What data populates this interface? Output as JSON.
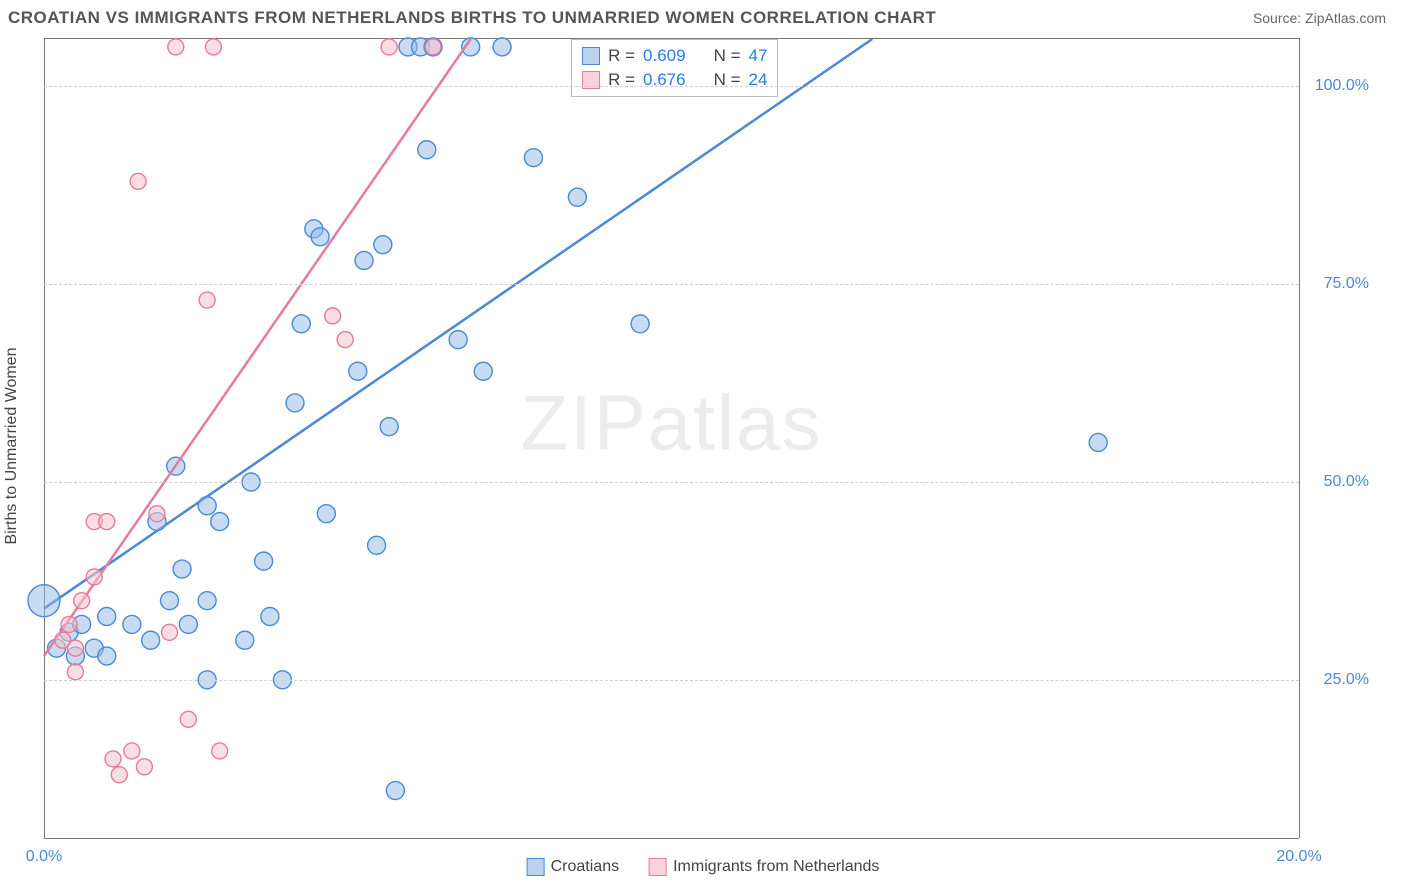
{
  "header": {
    "title": "CROATIAN VS IMMIGRANTS FROM NETHERLANDS BIRTHS TO UNMARRIED WOMEN CORRELATION CHART",
    "source": "Source: ZipAtlas.com"
  },
  "watermark": {
    "left": "ZIP",
    "right": "atlas"
  },
  "chart": {
    "type": "scatter",
    "y_axis_title": "Births to Unmarried Women",
    "x_domain": [
      0,
      20
    ],
    "y_domain": [
      5,
      106
    ],
    "x_ticks": [
      {
        "value": 0,
        "label": "0.0%",
        "color": "#4a8ad4"
      },
      {
        "value": 20,
        "label": "20.0%",
        "color": "#4a8ad4"
      }
    ],
    "y_ticks": [
      {
        "value": 25,
        "label": "25.0%",
        "color": "#4a8ad4"
      },
      {
        "value": 50,
        "label": "50.0%",
        "color": "#4a8ad4"
      },
      {
        "value": 75,
        "label": "75.0%",
        "color": "#4a8ad4"
      },
      {
        "value": 100,
        "label": "100.0%",
        "color": "#4a8ad4"
      }
    ],
    "grid_color": "#d0d0d0",
    "series": [
      {
        "id": "croatians",
        "label": "Croatians",
        "color_fill": "#90b8e8",
        "color_stroke": "#4a8ad4",
        "fill_opacity": 0.5,
        "marker_radius": 9,
        "points": [
          {
            "x": 0.0,
            "y": 35,
            "r": 16
          },
          {
            "x": 0.2,
            "y": 29
          },
          {
            "x": 0.4,
            "y": 31
          },
          {
            "x": 0.5,
            "y": 28
          },
          {
            "x": 0.6,
            "y": 32
          },
          {
            "x": 0.8,
            "y": 29
          },
          {
            "x": 1.0,
            "y": 33
          },
          {
            "x": 1.0,
            "y": 28
          },
          {
            "x": 1.4,
            "y": 32
          },
          {
            "x": 1.7,
            "y": 30
          },
          {
            "x": 1.8,
            "y": 45
          },
          {
            "x": 2.0,
            "y": 35
          },
          {
            "x": 2.1,
            "y": 52
          },
          {
            "x": 2.2,
            "y": 39
          },
          {
            "x": 2.3,
            "y": 32
          },
          {
            "x": 2.6,
            "y": 47
          },
          {
            "x": 2.6,
            "y": 35
          },
          {
            "x": 2.6,
            "y": 25
          },
          {
            "x": 2.8,
            "y": 45
          },
          {
            "x": 3.2,
            "y": 30
          },
          {
            "x": 3.3,
            "y": 50
          },
          {
            "x": 3.5,
            "y": 40
          },
          {
            "x": 3.6,
            "y": 33
          },
          {
            "x": 3.8,
            "y": 25
          },
          {
            "x": 4.0,
            "y": 60
          },
          {
            "x": 4.1,
            "y": 70
          },
          {
            "x": 4.3,
            "y": 82
          },
          {
            "x": 4.4,
            "y": 81
          },
          {
            "x": 4.5,
            "y": 46
          },
          {
            "x": 5.0,
            "y": 64
          },
          {
            "x": 5.1,
            "y": 78
          },
          {
            "x": 5.3,
            "y": 42
          },
          {
            "x": 5.4,
            "y": 80
          },
          {
            "x": 5.5,
            "y": 57
          },
          {
            "x": 5.6,
            "y": 11
          },
          {
            "x": 5.8,
            "y": 105
          },
          {
            "x": 6.0,
            "y": 105
          },
          {
            "x": 6.1,
            "y": 92
          },
          {
            "x": 6.2,
            "y": 105
          },
          {
            "x": 6.6,
            "y": 68
          },
          {
            "x": 6.8,
            "y": 105
          },
          {
            "x": 7.0,
            "y": 64
          },
          {
            "x": 7.3,
            "y": 105
          },
          {
            "x": 7.8,
            "y": 91
          },
          {
            "x": 8.5,
            "y": 86
          },
          {
            "x": 9.5,
            "y": 70
          },
          {
            "x": 16.8,
            "y": 55
          }
        ],
        "trend_line": {
          "x1": 0,
          "y1": 34,
          "x2": 13.2,
          "y2": 106,
          "stroke_width": 2.5
        },
        "stats": {
          "R": "0.609",
          "N": "47"
        }
      },
      {
        "id": "netherlands",
        "label": "Immigrants from Netherlands",
        "color_fill": "#f4c2cc",
        "color_stroke": "#e87a9a",
        "fill_opacity": 0.55,
        "marker_radius": 8,
        "points": [
          {
            "x": 0.3,
            "y": 30
          },
          {
            "x": 0.4,
            "y": 32
          },
          {
            "x": 0.5,
            "y": 29
          },
          {
            "x": 0.5,
            "y": 26
          },
          {
            "x": 0.6,
            "y": 35
          },
          {
            "x": 0.8,
            "y": 45
          },
          {
            "x": 0.8,
            "y": 38
          },
          {
            "x": 1.0,
            "y": 45
          },
          {
            "x": 1.1,
            "y": 15
          },
          {
            "x": 1.2,
            "y": 13
          },
          {
            "x": 1.4,
            "y": 16
          },
          {
            "x": 1.5,
            "y": 88
          },
          {
            "x": 1.6,
            "y": 14
          },
          {
            "x": 1.8,
            "y": 46
          },
          {
            "x": 2.0,
            "y": 31
          },
          {
            "x": 2.1,
            "y": 105
          },
          {
            "x": 2.3,
            "y": 20
          },
          {
            "x": 2.6,
            "y": 73
          },
          {
            "x": 2.7,
            "y": 105
          },
          {
            "x": 2.8,
            "y": 16
          },
          {
            "x": 4.6,
            "y": 71
          },
          {
            "x": 4.8,
            "y": 68
          },
          {
            "x": 5.5,
            "y": 105
          },
          {
            "x": 6.2,
            "y": 105
          }
        ],
        "trend_line": {
          "x1": 0,
          "y1": 28,
          "x2": 6.8,
          "y2": 106,
          "stroke_width": 2.5
        },
        "stats": {
          "R": "0.676",
          "N": "24"
        }
      }
    ],
    "legend": {
      "items": [
        {
          "label": "Croatians",
          "fill": "#bcd3f0",
          "stroke": "#4a8ad4"
        },
        {
          "label": "Immigrants from Netherlands",
          "fill": "#f7d4dc",
          "stroke": "#e87a9a"
        }
      ]
    }
  }
}
